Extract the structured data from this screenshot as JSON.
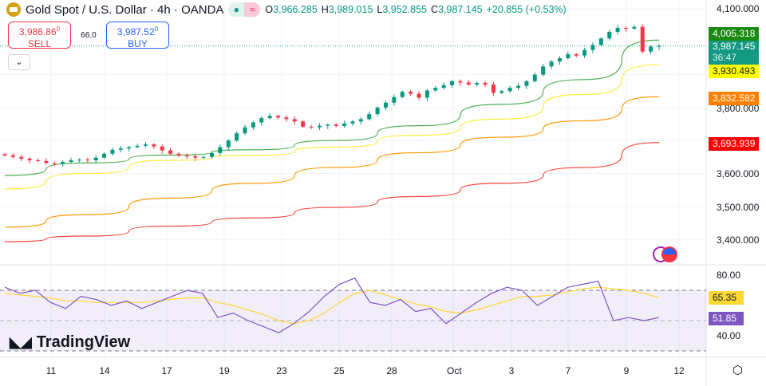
{
  "header": {
    "symbol": "Gold Spot / U.S. Dollar · 4h · OANDA",
    "ohlc": {
      "o_label": "O",
      "o": "3,966.285",
      "h_label": "H",
      "h": "3,989.015",
      "l_label": "L",
      "l": "3,952.855",
      "c_label": "C",
      "c": "3,987.145",
      "change": "+20.855 (+0.53%)"
    }
  },
  "trade": {
    "sell_price": "3,986.86",
    "sell_sup": "0",
    "sell_label": "SELL",
    "spread": "66.0",
    "buy_price": "3,987.52",
    "buy_sup": "0",
    "buy_label": "BUY"
  },
  "price_axis": {
    "ticks": [
      "4,100.000",
      "3,800.000",
      "3,600.000",
      "3,500.000",
      "3,400.000"
    ],
    "tick_values": [
      4100,
      3800,
      3600,
      3500,
      3400
    ]
  },
  "labels": {
    "ma_green": "4,005.318",
    "last_price": "3,987.145",
    "countdown": "36:47",
    "ma_yellow": "3,930.493",
    "ma_orange": "3,832.582",
    "ma_red": "3,693.939",
    "rsi_signal": "65.35",
    "rsi": "51.85"
  },
  "rsi_axis": {
    "ticks": [
      "80.00",
      "40.00"
    ],
    "tick_values": [
      80,
      40
    ]
  },
  "time_axis": {
    "ticks": [
      "11",
      "14",
      "17",
      "19",
      "23",
      "25",
      "28",
      "Oct",
      "3",
      "7",
      "9",
      "12"
    ]
  },
  "branding": {
    "text": "TradingView"
  },
  "colors": {
    "up": "#089981",
    "down": "#f23645",
    "ma_green": "#4caf50",
    "ma_yellow": "#ffeb3b",
    "ma_orange": "#ff9800",
    "ma_red": "#f44336",
    "rsi": "#7e57c2",
    "rsi_signal": "#fdd835"
  },
  "chart_data": {
    "type": "candlestick",
    "closes": [
      3655,
      3650,
      3645,
      3640,
      3638,
      3632,
      3630,
      3635,
      3640,
      3642,
      3640,
      3648,
      3660,
      3672,
      3676,
      3680,
      3684,
      3688,
      3682,
      3670,
      3660,
      3655,
      3652,
      3648,
      3650,
      3662,
      3680,
      3700,
      3722,
      3740,
      3755,
      3768,
      3775,
      3770,
      3765,
      3758,
      3742,
      3740,
      3745,
      3748,
      3744,
      3752,
      3758,
      3765,
      3780,
      3800,
      3815,
      3832,
      3848,
      3842,
      3830,
      3852,
      3860,
      3868,
      3880,
      3876,
      3870,
      3875,
      3870,
      3845,
      3850,
      3860,
      3866,
      3880,
      3900,
      3925,
      3940,
      3950,
      3962,
      3958,
      3975,
      3990,
      4010,
      4030,
      4042,
      4040,
      4045,
      3970,
      3985,
      3987
    ],
    "ma_sample_index": [
      0,
      10,
      20,
      30,
      40,
      50,
      60,
      70,
      79
    ],
    "ma_green": [
      3594,
      3632,
      3656,
      3672,
      3700,
      3745,
      3810,
      3885,
      4005
    ],
    "ma_yellow": [
      3553,
      3600,
      3640,
      3655,
      3680,
      3716,
      3765,
      3840,
      3930
    ],
    "ma_orange": [
      3437,
      3475,
      3525,
      3570,
      3618,
      3663,
      3710,
      3760,
      3833
    ],
    "ma_red": [
      3393,
      3410,
      3440,
      3465,
      3497,
      3530,
      3570,
      3618,
      3694
    ],
    "rsi": [
      72,
      68,
      70,
      62,
      58,
      66,
      64,
      60,
      63,
      58,
      62,
      66,
      70,
      68,
      52,
      55,
      50,
      46,
      42,
      48,
      56,
      66,
      74,
      78,
      62,
      60,
      64,
      56,
      58,
      48,
      55,
      62,
      68,
      72,
      70,
      60,
      66,
      72,
      74,
      76,
      50,
      52,
      50,
      52
    ],
    "rsi_signal": [
      68,
      67,
      66,
      65,
      63,
      63,
      62,
      62,
      62,
      62,
      63,
      64,
      65,
      65,
      62,
      60,
      57,
      54,
      50,
      48,
      50,
      55,
      62,
      68,
      70,
      67,
      64,
      61,
      59,
      56,
      55,
      57,
      60,
      63,
      66,
      66,
      67,
      69,
      71,
      72,
      71,
      70,
      68,
      65
    ],
    "rsi_bands": [
      70,
      50,
      30
    ],
    "ylim": [
      3370,
      4120
    ],
    "rsi_ylim": [
      30,
      85
    ]
  }
}
